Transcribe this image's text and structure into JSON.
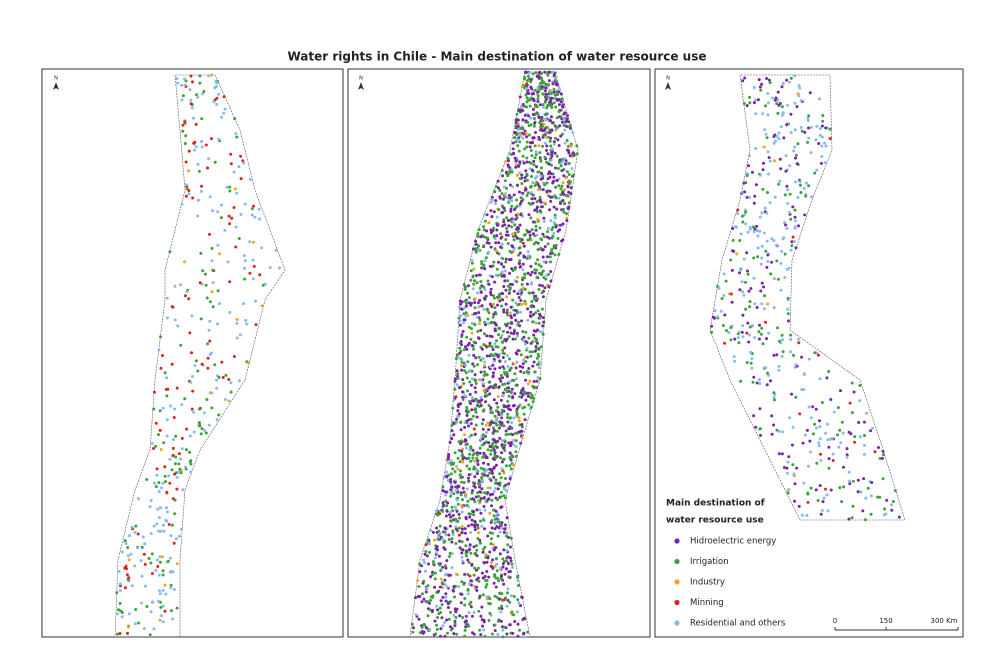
{
  "title": "Water rights in Chile - Main destination of water resource use",
  "north": "N",
  "legend": {
    "title_line1": "Main destination of",
    "title_line2": "water resource use",
    "items": [
      {
        "label": "Hidroelectric energy",
        "color": "#7b22a8"
      },
      {
        "label": "Irrigation",
        "color": "#3aa335"
      },
      {
        "label": "Industry",
        "color": "#f2a51e"
      },
      {
        "label": "Minning",
        "color": "#e0221b"
      },
      {
        "label": "Residential and others",
        "color": "#86b9ee"
      }
    ]
  },
  "scale": {
    "labels": [
      "0",
      "150",
      "300 Km"
    ]
  }
}
